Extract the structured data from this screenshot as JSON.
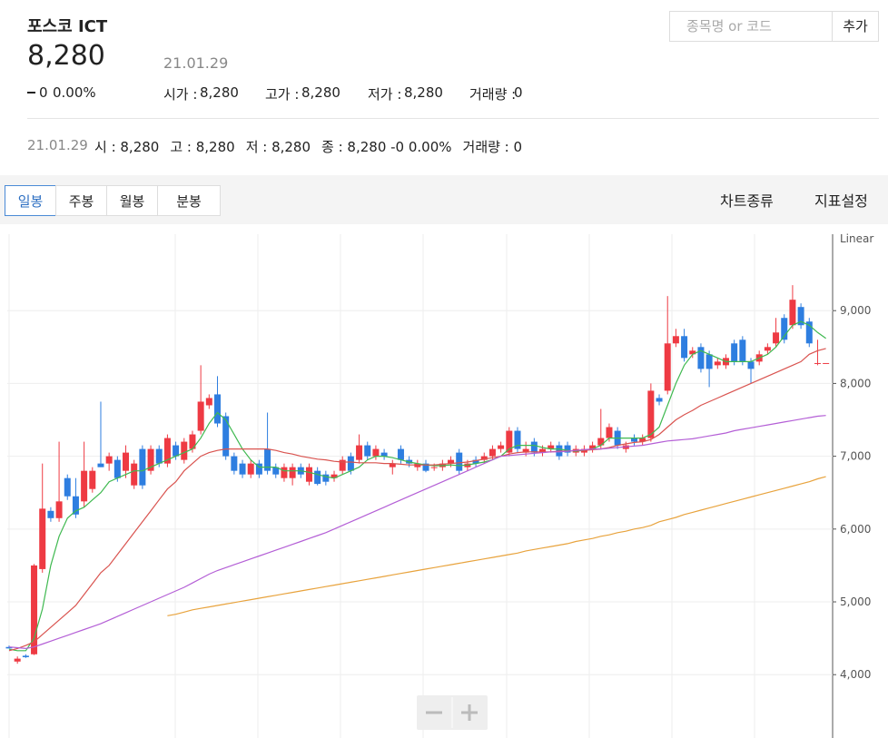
{
  "header": {
    "title": "포스코 ICT",
    "price": "8,280",
    "date": "21.01.29",
    "change": "0",
    "change_pct": "0.00%",
    "stats": [
      {
        "label": "시가 :",
        "value": "8,280"
      },
      {
        "label": "고가 :",
        "value": "8,280"
      },
      {
        "label": "저가 :",
        "value": "8,280"
      },
      {
        "label": "거래량 :",
        "value": "0"
      }
    ]
  },
  "search": {
    "placeholder": "종목명 or 코드",
    "button": "추가"
  },
  "summary": {
    "date": "21.01.29",
    "items": [
      "시 : 8,280",
      "고 : 8,280",
      "저 : 8,280",
      "종 : 8,280 -0 0.00%",
      "거래량 : 0"
    ]
  },
  "tabs": {
    "periods": [
      "일봉",
      "주봉",
      "월봉",
      "분봉"
    ],
    "active": 0,
    "menus": [
      "차트종류",
      "지표설정"
    ]
  },
  "chart_data": {
    "type": "candlestick",
    "scale_label": "Linear",
    "up_color": "#ee3a43",
    "down_color": "#2e7ee0",
    "ylim": [
      3130,
      10050
    ],
    "yticks": [
      {
        "value": 4000,
        "label": "4,000"
      },
      {
        "value": 5000,
        "label": "5,000"
      },
      {
        "value": 6000,
        "label": "6,000"
      },
      {
        "value": 7000,
        "label": "7,000"
      },
      {
        "value": 8000,
        "label": "8,000"
      },
      {
        "value": 9000,
        "label": "9,000"
      }
    ],
    "grid": true,
    "candles": [
      [
        4380,
        4400,
        4360,
        4360
      ],
      [
        4180,
        4250,
        4150,
        4220
      ],
      [
        4260,
        4280,
        4230,
        4240
      ],
      [
        4280,
        5520,
        4270,
        5500
      ],
      [
        5450,
        6900,
        5400,
        6280
      ],
      [
        6250,
        6300,
        6100,
        6150
      ],
      [
        6150,
        7200,
        6100,
        6380
      ],
      [
        6700,
        6750,
        6400,
        6450
      ],
      [
        6450,
        6700,
        6150,
        6200
      ],
      [
        6380,
        7200,
        6300,
        6800
      ],
      [
        6550,
        6850,
        6500,
        6800
      ],
      [
        6900,
        7750,
        6850,
        6850
      ],
      [
        6900,
        7050,
        6800,
        7000
      ],
      [
        6950,
        7000,
        6650,
        6700
      ],
      [
        6800,
        7150,
        6700,
        7050
      ],
      [
        6600,
        6950,
        6550,
        6900
      ],
      [
        7100,
        7150,
        6550,
        6600
      ],
      [
        6800,
        7150,
        6750,
        7100
      ],
      [
        7100,
        7150,
        6850,
        6900
      ],
      [
        6900,
        7300,
        6850,
        7250
      ],
      [
        7150,
        7200,
        6950,
        7000
      ],
      [
        6950,
        7250,
        6900,
        7200
      ],
      [
        7100,
        7350,
        7050,
        7300
      ],
      [
        7350,
        8250,
        7300,
        7750
      ],
      [
        7700,
        7850,
        7650,
        7800
      ],
      [
        7850,
        8100,
        7400,
        7450
      ],
      [
        7550,
        7600,
        6950,
        7000
      ],
      [
        7000,
        7050,
        6750,
        6800
      ],
      [
        6900,
        6950,
        6700,
        6750
      ],
      [
        6750,
        6950,
        6700,
        6900
      ],
      [
        6900,
        6950,
        6700,
        6750
      ],
      [
        7100,
        7600,
        6750,
        6800
      ],
      [
        6850,
        6900,
        6700,
        6750
      ],
      [
        6700,
        6900,
        6650,
        6850
      ],
      [
        6700,
        6900,
        6600,
        6850
      ],
      [
        6850,
        6900,
        6700,
        6750
      ],
      [
        6650,
        6900,
        6600,
        6850
      ],
      [
        6800,
        6850,
        6600,
        6620
      ],
      [
        6750,
        6800,
        6600,
        6650
      ],
      [
        6700,
        6800,
        6650,
        6750
      ],
      [
        6800,
        7000,
        6750,
        6950
      ],
      [
        7000,
        7050,
        6750,
        6800
      ],
      [
        6950,
        7300,
        6900,
        7150
      ],
      [
        7150,
        7200,
        6950,
        7000
      ],
      [
        7000,
        7150,
        6950,
        7100
      ],
      [
        7050,
        7100,
        6950,
        7000
      ],
      [
        6850,
        6950,
        6750,
        6900
      ],
      [
        7100,
        7150,
        6900,
        6950
      ],
      [
        6950,
        7000,
        6850,
        6900
      ],
      [
        6850,
        6950,
        6800,
        6900
      ],
      [
        6900,
        6950,
        6780,
        6800
      ],
      [
        6850,
        6900,
        6800,
        6850
      ],
      [
        6850,
        6950,
        6800,
        6900
      ],
      [
        6900,
        7000,
        6850,
        6950
      ],
      [
        7050,
        7100,
        6750,
        6800
      ],
      [
        6850,
        6950,
        6800,
        6900
      ],
      [
        6950,
        7000,
        6850,
        6900
      ],
      [
        6950,
        7050,
        6900,
        7000
      ],
      [
        7000,
        7150,
        6950,
        7100
      ],
      [
        7100,
        7200,
        7050,
        7150
      ],
      [
        7050,
        7400,
        7000,
        7350
      ],
      [
        7350,
        7400,
        7050,
        7100
      ],
      [
        7050,
        7200,
        7000,
        7100
      ],
      [
        7200,
        7250,
        7000,
        7050
      ],
      [
        7050,
        7150,
        7000,
        7100
      ],
      [
        7100,
        7200,
        7050,
        7150
      ],
      [
        7150,
        7200,
        6950,
        7000
      ],
      [
        7150,
        7200,
        7000,
        7050
      ],
      [
        7050,
        7150,
        7000,
        7100
      ],
      [
        7050,
        7150,
        7000,
        7100
      ],
      [
        7100,
        7200,
        7050,
        7150
      ],
      [
        7150,
        7650,
        7100,
        7250
      ],
      [
        7250,
        7450,
        7200,
        7400
      ],
      [
        7350,
        7400,
        7100,
        7150
      ],
      [
        7100,
        7200,
        7050,
        7150
      ],
      [
        7250,
        7300,
        7150,
        7200
      ],
      [
        7200,
        7300,
        7150,
        7250
      ],
      [
        7250,
        8000,
        7200,
        7900
      ],
      [
        7800,
        7850,
        7700,
        7750
      ],
      [
        7900,
        9200,
        7850,
        8550
      ],
      [
        8550,
        8750,
        8500,
        8650
      ],
      [
        8650,
        8750,
        8300,
        8350
      ],
      [
        8400,
        8500,
        8350,
        8450
      ],
      [
        8500,
        8550,
        8150,
        8200
      ],
      [
        8400,
        8450,
        7950,
        8200
      ],
      [
        8250,
        8350,
        8200,
        8300
      ],
      [
        8250,
        8400,
        8200,
        8350
      ],
      [
        8550,
        8600,
        8250,
        8300
      ],
      [
        8600,
        8650,
        8250,
        8300
      ],
      [
        8300,
        8350,
        8000,
        8200
      ],
      [
        8300,
        8450,
        8250,
        8400
      ],
      [
        8450,
        8550,
        8400,
        8500
      ],
      [
        8550,
        8900,
        8500,
        8700
      ],
      [
        8900,
        8950,
        8550,
        8600
      ],
      [
        8800,
        9350,
        8750,
        9150
      ],
      [
        9050,
        9100,
        8750,
        8800
      ],
      [
        8850,
        8900,
        8500,
        8550
      ],
      [
        8280,
        8600,
        8250,
        8280
      ],
      [
        8280,
        8280,
        8280,
        8280
      ]
    ],
    "series": [
      {
        "color": "#3fb950",
        "values": [
          4350,
          4330,
          4330,
          4500,
          4900,
          5500,
          5900,
          6150,
          6250,
          6300,
          6400,
          6500,
          6650,
          6700,
          6750,
          6800,
          6800,
          6850,
          6900,
          6950,
          7000,
          7050,
          7100,
          7250,
          7450,
          7600,
          7500,
          7300,
          7100,
          6950,
          6850,
          6850,
          6850,
          6800,
          6800,
          6800,
          6780,
          6750,
          6720,
          6700,
          6750,
          6800,
          6850,
          6950,
          7000,
          7000,
          6980,
          6950,
          6920,
          6900,
          6880,
          6870,
          6870,
          6880,
          6870,
          6880,
          6900,
          6920,
          6950,
          7000,
          7100,
          7150,
          7150,
          7150,
          7120,
          7100,
          7100,
          7080,
          7070,
          7080,
          7100,
          7150,
          7250,
          7250,
          7250,
          7250,
          7250,
          7300,
          7400,
          7700,
          8000,
          8250,
          8400,
          8450,
          8400,
          8350,
          8300,
          8300,
          8300,
          8300,
          8350,
          8400,
          8500,
          8650,
          8800,
          8850,
          8800,
          8700,
          8620
        ]
      },
      {
        "color": "#d9534f",
        "values": [
          4330,
          4360,
          4400,
          4450,
          4550,
          4650,
          4750,
          4850,
          4950,
          5100,
          5250,
          5400,
          5500,
          5650,
          5800,
          5950,
          6100,
          6250,
          6400,
          6550,
          6650,
          6800,
          6900,
          7000,
          7050,
          7080,
          7100,
          7100,
          7100,
          7100,
          7100,
          7100,
          7080,
          7050,
          7030,
          7000,
          6980,
          6960,
          6950,
          6930,
          6920,
          6920,
          6910,
          6910,
          6910,
          6900,
          6900,
          6890,
          6880,
          6880,
          6880,
          6880,
          6890,
          6900,
          6910,
          6920,
          6940,
          6960,
          6980,
          7000,
          7030,
          7050,
          7060,
          7060,
          7060,
          7060,
          7070,
          7070,
          7080,
          7080,
          7090,
          7100,
          7120,
          7150,
          7170,
          7190,
          7200,
          7230,
          7300,
          7400,
          7500,
          7570,
          7630,
          7700,
          7750,
          7800,
          7850,
          7900,
          7950,
          8000,
          8050,
          8100,
          8150,
          8200,
          8250,
          8300,
          8400,
          8450,
          8480
        ]
      },
      {
        "color": "#b45fd6",
        "values": [
          4380,
          4370,
          4360,
          4380,
          4420,
          4460,
          4500,
          4540,
          4580,
          4620,
          4660,
          4700,
          4750,
          4800,
          4850,
          4900,
          4950,
          5000,
          5050,
          5100,
          5150,
          5200,
          5260,
          5320,
          5380,
          5430,
          5470,
          5510,
          5550,
          5590,
          5630,
          5670,
          5710,
          5750,
          5790,
          5830,
          5870,
          5910,
          5950,
          6000,
          6050,
          6100,
          6150,
          6200,
          6250,
          6300,
          6350,
          6400,
          6450,
          6500,
          6550,
          6600,
          6650,
          6700,
          6750,
          6800,
          6850,
          6900,
          6950,
          7000,
          7010,
          7020,
          7030,
          7040,
          7050,
          7060,
          7060,
          7070,
          7080,
          7090,
          7100,
          7100,
          7110,
          7120,
          7130,
          7140,
          7150,
          7170,
          7190,
          7210,
          7220,
          7230,
          7240,
          7260,
          7280,
          7300,
          7320,
          7350,
          7370,
          7390,
          7410,
          7430,
          7450,
          7470,
          7490,
          7510,
          7530,
          7550,
          7560
        ]
      },
      {
        "color": "#e8a33d",
        "values": [
          null,
          null,
          null,
          null,
          null,
          null,
          null,
          null,
          null,
          null,
          null,
          null,
          null,
          null,
          null,
          null,
          null,
          null,
          null,
          4810,
          4830,
          4860,
          4890,
          4910,
          4930,
          4950,
          4970,
          4990,
          5010,
          5030,
          5050,
          5070,
          5090,
          5110,
          5130,
          5150,
          5170,
          5190,
          5210,
          5230,
          5250,
          5270,
          5290,
          5310,
          5330,
          5350,
          5370,
          5390,
          5410,
          5430,
          5450,
          5470,
          5490,
          5510,
          5530,
          5550,
          5570,
          5590,
          5610,
          5630,
          5650,
          5670,
          5700,
          5720,
          5740,
          5760,
          5780,
          5800,
          5830,
          5850,
          5870,
          5900,
          5920,
          5950,
          5970,
          6000,
          6020,
          6050,
          6100,
          6130,
          6160,
          6200,
          6230,
          6260,
          6290,
          6320,
          6350,
          6380,
          6410,
          6440,
          6470,
          6500,
          6530,
          6560,
          6590,
          6620,
          6650,
          6690,
          6720
        ]
      }
    ]
  }
}
